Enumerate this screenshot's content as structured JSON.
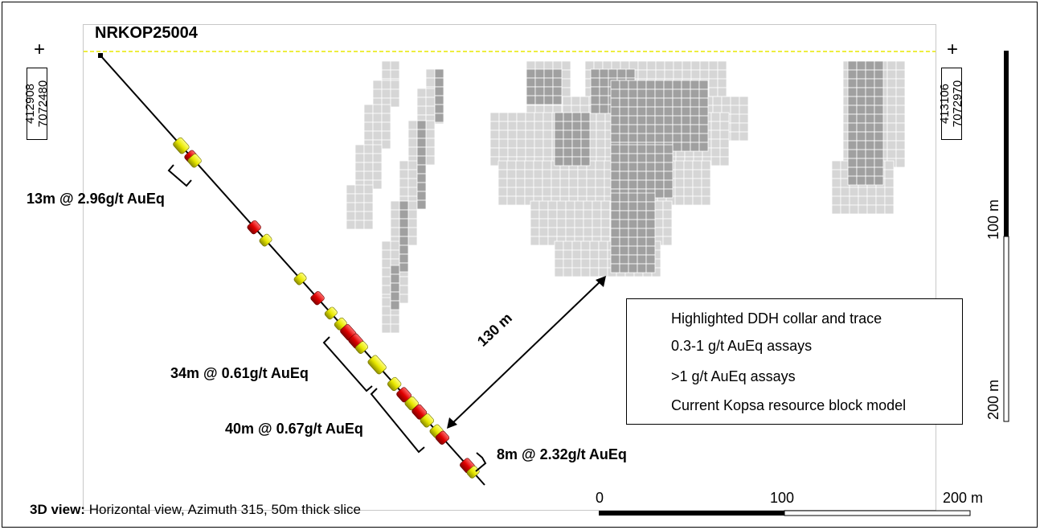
{
  "hole_id": "NRKOP25004",
  "coords_left": {
    "line1": "412908",
    "line2": "7072480"
  },
  "coords_right": {
    "line1": "413106",
    "line2": "7072970"
  },
  "cross_glyph": "+",
  "intercepts": [
    {
      "label": "13m @ 2.96g/t AuEq"
    },
    {
      "label": "34m @ 0.61g/t AuEq"
    },
    {
      "label": "40m @ 0.67g/t AuEq"
    },
    {
      "label": "8m @ 2.32g/t AuEq"
    }
  ],
  "distance_label": "130 m",
  "legend": {
    "items": [
      {
        "label": "Highlighted DDH collar and trace",
        "icon": "drill-trace-icon"
      },
      {
        "label": "0.3-1 g/t AuEq assays",
        "icon": "yellow-assay-icon",
        "color": "#e8e800"
      },
      {
        "label": ">1 g/t AuEq assays",
        "icon": "red-assay-icon",
        "color": "#e00000"
      },
      {
        "label": "Current Kopsa resource block model",
        "icon": "block-model-icon",
        "color": "#c8c8c8"
      }
    ]
  },
  "scale_bar_vertical": {
    "label_top": "100 m",
    "label_bottom": "200 m"
  },
  "scale_bar_horizontal": {
    "ticks": [
      "0",
      "100",
      "200 m"
    ]
  },
  "footer": {
    "bold": "3D view:",
    "rest": " Horizontal view, Azimuth 315, 50m thick slice"
  },
  "colors": {
    "block_light": "#d6d6d6",
    "block_dark": "#a0a0a0",
    "block_grid": "#ffffff",
    "assay_yellow": "#e8e800",
    "assay_red": "#e00000",
    "surface_line": "#e8e800"
  }
}
